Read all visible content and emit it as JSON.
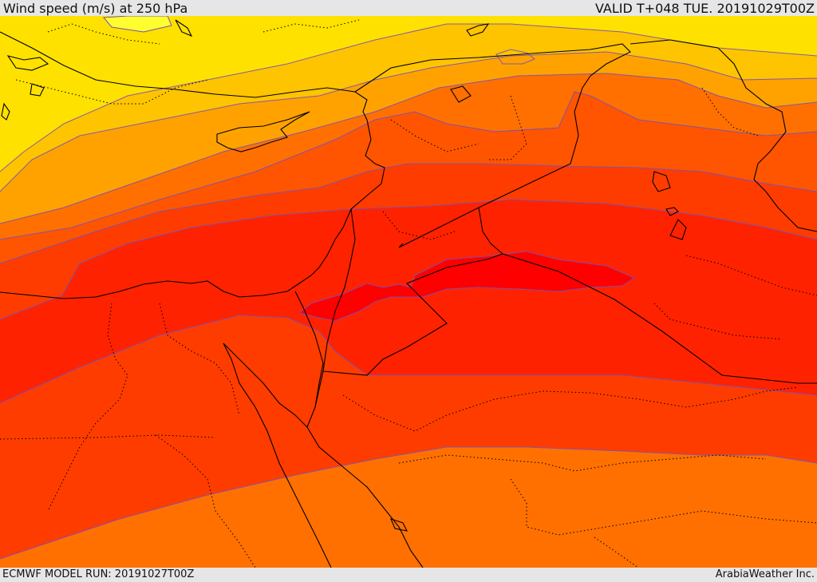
{
  "header": {
    "title": "Wind speed (m/s) at 250 hPa",
    "valid": "VALID T+048 TUE. 20191029T00Z"
  },
  "footer": {
    "model_run": "ECMWF MODEL RUN: 20191027T00Z",
    "credit": "ArabiaWeather Inc."
  },
  "map": {
    "field": "wind-speed-250hPa",
    "band_colors": [
      "#ffe100",
      "#ffc400",
      "#ffa200",
      "#ff8c00",
      "#ff7000",
      "#ff5500",
      "#ff3c00",
      "#ff2200",
      "#ff0000"
    ],
    "contour_color": "#7a50b8",
    "coastline_color": "#000000",
    "border_style": "dotted"
  }
}
